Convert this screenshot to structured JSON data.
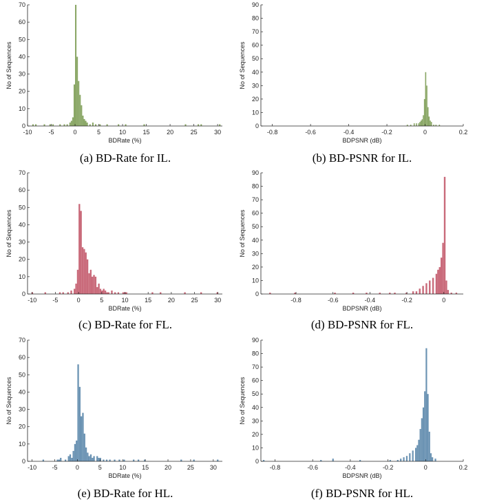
{
  "chart_data": [
    {
      "type": "histogram",
      "caption": "(a) BD-Rate for IL.",
      "xlabel": "BDRate (%)",
      "ylabel": "No of Sequences",
      "xlim": [
        -10,
        31
      ],
      "ylim": [
        0,
        70
      ],
      "xticks": [
        -10,
        -5,
        0,
        5,
        10,
        15,
        20,
        25,
        30
      ],
      "yticks": [
        0,
        10,
        20,
        30,
        40,
        50,
        60,
        70
      ],
      "color": "#8aa766",
      "bin_width": 0.3,
      "bins": [
        [
          -9.0,
          1
        ],
        [
          -8.4,
          1
        ],
        [
          -6.6,
          1
        ],
        [
          -5.4,
          1
        ],
        [
          -4.8,
          1
        ],
        [
          -3.3,
          1
        ],
        [
          -2.4,
          1
        ],
        [
          -1.8,
          1
        ],
        [
          -1.2,
          2
        ],
        [
          -0.9,
          3
        ],
        [
          -0.6,
          5
        ],
        [
          -0.3,
          24
        ],
        [
          0.0,
          70
        ],
        [
          0.3,
          40
        ],
        [
          0.6,
          26
        ],
        [
          0.9,
          18
        ],
        [
          1.2,
          12
        ],
        [
          1.5,
          6
        ],
        [
          1.8,
          4
        ],
        [
          2.1,
          3
        ],
        [
          2.4,
          2
        ],
        [
          3.0,
          1
        ],
        [
          3.6,
          2
        ],
        [
          4.2,
          1
        ],
        [
          5.1,
          1
        ],
        [
          6.6,
          1
        ],
        [
          9.0,
          1
        ],
        [
          10.5,
          1
        ],
        [
          14.4,
          1
        ],
        [
          23.1,
          1
        ],
        [
          25.8,
          1
        ],
        [
          26.4,
          1
        ],
        [
          30.3,
          1
        ]
      ]
    },
    {
      "type": "histogram",
      "caption": "(b) BD-PSNR for IL.",
      "xlabel": "BDPSNR (dB)",
      "ylabel": "No of Sequences",
      "xlim": [
        -0.86,
        0.2
      ],
      "ylim": [
        0,
        90
      ],
      "xticks": [
        -0.8,
        -0.6,
        -0.4,
        -0.2,
        0,
        0.2
      ],
      "xtick_labels": [
        "-0.8",
        "-0.6",
        "-0.4",
        "-0.2",
        "0",
        "0.2"
      ],
      "yticks": [
        0,
        10,
        20,
        30,
        40,
        50,
        60,
        70,
        80,
        90
      ],
      "color": "#8aa766",
      "bin_width": 0.006,
      "bins": [
        [
          -0.096,
          1
        ],
        [
          -0.078,
          1
        ],
        [
          -0.06,
          2
        ],
        [
          -0.048,
          2
        ],
        [
          -0.036,
          2
        ],
        [
          -0.03,
          3
        ],
        [
          -0.024,
          4
        ],
        [
          -0.018,
          5
        ],
        [
          -0.012,
          8
        ],
        [
          -0.006,
          20
        ],
        [
          0.0,
          40
        ],
        [
          0.006,
          30
        ],
        [
          0.012,
          14
        ],
        [
          0.018,
          7
        ],
        [
          0.024,
          4
        ],
        [
          0.03,
          3
        ],
        [
          0.042,
          1
        ],
        [
          0.054,
          1
        ],
        [
          0.072,
          1
        ]
      ]
    },
    {
      "type": "histogram",
      "caption": "(c) BD-Rate for FL.",
      "xlabel": "BDRate (%)",
      "ylabel": "No of Sequences",
      "xlim": [
        -11,
        31
      ],
      "ylim": [
        0,
        70
      ],
      "xticks": [
        -10,
        -5,
        0,
        5,
        10,
        15,
        20,
        25,
        30
      ],
      "yticks": [
        0,
        10,
        20,
        30,
        40,
        50,
        60,
        70
      ],
      "color": "#c96a7a",
      "bin_width": 0.35,
      "bins": [
        [
          -10.15,
          1
        ],
        [
          -7.35,
          1
        ],
        [
          -4.2,
          1
        ],
        [
          -3.5,
          1
        ],
        [
          -2.45,
          1
        ],
        [
          -1.75,
          2
        ],
        [
          -1.05,
          3
        ],
        [
          -0.7,
          6
        ],
        [
          -0.35,
          14
        ],
        [
          0.0,
          52
        ],
        [
          0.35,
          48
        ],
        [
          0.7,
          27
        ],
        [
          1.05,
          26
        ],
        [
          1.4,
          24
        ],
        [
          1.75,
          20
        ],
        [
          2.1,
          12
        ],
        [
          2.45,
          14
        ],
        [
          2.8,
          10
        ],
        [
          3.15,
          11
        ],
        [
          3.5,
          10
        ],
        [
          3.85,
          4
        ],
        [
          4.2,
          6
        ],
        [
          4.55,
          3
        ],
        [
          4.9,
          2
        ],
        [
          5.25,
          3
        ],
        [
          5.6,
          2
        ],
        [
          5.95,
          1
        ],
        [
          6.3,
          1
        ],
        [
          7.0,
          2
        ],
        [
          7.7,
          1
        ],
        [
          8.4,
          1
        ],
        [
          9.45,
          1
        ],
        [
          9.8,
          1
        ],
        [
          10.15,
          1
        ],
        [
          15.75,
          1
        ],
        [
          17.5,
          1
        ],
        [
          22.75,
          1
        ],
        [
          26.25,
          1
        ],
        [
          29.75,
          1
        ]
      ]
    },
    {
      "type": "histogram",
      "caption": "(d) BD-PSNR for FL.",
      "xlabel": "BDPSNR (dB)",
      "ylabel": "No of Sequences",
      "xlim": [
        -0.99,
        0.105
      ],
      "ylim": [
        0,
        90
      ],
      "xticks": [
        -0.8,
        -0.6,
        -0.4,
        -0.2,
        0
      ],
      "xtick_labels": [
        "-0.8",
        "-0.6",
        "-0.4",
        "-0.2",
        "0"
      ],
      "yticks": [
        0,
        10,
        20,
        30,
        40,
        50,
        60,
        70,
        80,
        90
      ],
      "color": "#c96a7a",
      "bin_width": 0.009,
      "bins": [
        [
          -0.945,
          1
        ],
        [
          -0.81,
          1
        ],
        [
          -0.594,
          1
        ],
        [
          -0.495,
          1
        ],
        [
          -0.423,
          1
        ],
        [
          -0.351,
          1
        ],
        [
          -0.297,
          1
        ],
        [
          -0.27,
          1
        ],
        [
          -0.207,
          1
        ],
        [
          -0.171,
          2
        ],
        [
          -0.153,
          2
        ],
        [
          -0.135,
          4
        ],
        [
          -0.117,
          6
        ],
        [
          -0.099,
          8
        ],
        [
          -0.081,
          10
        ],
        [
          -0.063,
          12
        ],
        [
          -0.045,
          15
        ],
        [
          -0.036,
          18
        ],
        [
          -0.027,
          20
        ],
        [
          -0.018,
          27
        ],
        [
          -0.009,
          38
        ],
        [
          0.0,
          87
        ],
        [
          0.009,
          10
        ],
        [
          0.018,
          3
        ],
        [
          0.036,
          1
        ],
        [
          0.063,
          1
        ]
      ]
    },
    {
      "type": "histogram",
      "caption": "(e) BD-Rate for HL.",
      "xlabel": "BDRate (%)",
      "ylabel": "No of Sequences",
      "xlim": [
        -11,
        32
      ],
      "ylim": [
        0,
        70
      ],
      "xticks": [
        -10,
        -5,
        0,
        5,
        10,
        15,
        20,
        25,
        30
      ],
      "yticks": [
        0,
        10,
        20,
        30,
        40,
        50,
        60,
        70
      ],
      "color": "#6b93b3",
      "bin_width": 0.35,
      "bins": [
        [
          -7.7,
          1
        ],
        [
          -4.55,
          1
        ],
        [
          -4.2,
          1
        ],
        [
          -3.85,
          2
        ],
        [
          -2.8,
          1
        ],
        [
          -2.1,
          3
        ],
        [
          -1.75,
          4
        ],
        [
          -1.4,
          2
        ],
        [
          -1.05,
          6
        ],
        [
          -0.7,
          10
        ],
        [
          -0.35,
          12
        ],
        [
          0.0,
          56
        ],
        [
          0.35,
          43
        ],
        [
          0.7,
          26
        ],
        [
          1.05,
          28
        ],
        [
          1.4,
          16
        ],
        [
          1.75,
          8
        ],
        [
          2.1,
          5
        ],
        [
          2.45,
          3
        ],
        [
          2.8,
          4
        ],
        [
          3.15,
          2
        ],
        [
          3.5,
          3
        ],
        [
          4.2,
          3
        ],
        [
          4.55,
          2
        ],
        [
          4.9,
          2
        ],
        [
          5.6,
          1
        ],
        [
          6.3,
          1
        ],
        [
          7.0,
          1
        ],
        [
          8.05,
          1
        ],
        [
          9.1,
          1
        ],
        [
          10.15,
          1
        ],
        [
          12.25,
          1
        ],
        [
          13.3,
          1
        ],
        [
          14.7,
          1
        ],
        [
          22.75,
          1
        ],
        [
          25.55,
          1
        ],
        [
          30.8,
          1
        ]
      ]
    },
    {
      "type": "histogram",
      "caption": "(f) BD-PSNR for HL.",
      "xlabel": "BDPSNR (dB)",
      "ylabel": "No of Sequences",
      "xlim": [
        -0.875,
        0.2
      ],
      "ylim": [
        0,
        90
      ],
      "xticks": [
        -0.8,
        -0.6,
        -0.4,
        -0.2,
        0,
        0.2
      ],
      "xtick_labels": [
        "-0.8",
        "-0.6",
        "-0.4",
        "-0.2",
        "0",
        "0.2"
      ],
      "yticks": [
        0,
        10,
        20,
        30,
        40,
        50,
        60,
        70,
        80,
        90
      ],
      "color": "#6b93b3",
      "bin_width": 0.008,
      "bins": [
        [
          -0.864,
          1
        ],
        [
          -0.56,
          1
        ],
        [
          -0.496,
          2
        ],
        [
          -0.352,
          1
        ],
        [
          -0.192,
          1
        ],
        [
          -0.152,
          1
        ],
        [
          -0.136,
          2
        ],
        [
          -0.12,
          3
        ],
        [
          -0.104,
          4
        ],
        [
          -0.088,
          6
        ],
        [
          -0.072,
          8
        ],
        [
          -0.056,
          10
        ],
        [
          -0.048,
          12
        ],
        [
          -0.04,
          16
        ],
        [
          -0.032,
          24
        ],
        [
          -0.024,
          32
        ],
        [
          -0.016,
          40
        ],
        [
          -0.008,
          52
        ],
        [
          0.0,
          84
        ],
        [
          0.008,
          50
        ],
        [
          0.016,
          22
        ],
        [
          0.024,
          6
        ],
        [
          0.032,
          3
        ],
        [
          0.048,
          2
        ]
      ]
    }
  ]
}
